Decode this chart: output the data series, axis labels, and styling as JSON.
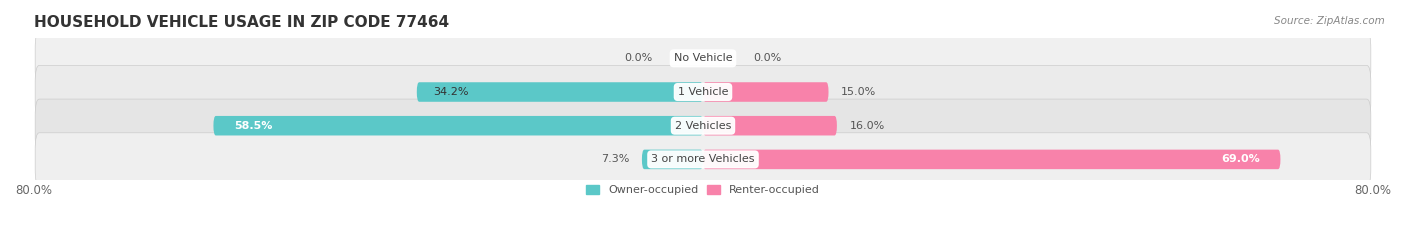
{
  "title": "HOUSEHOLD VEHICLE USAGE IN ZIP CODE 77464",
  "source": "Source: ZipAtlas.com",
  "categories": [
    "No Vehicle",
    "1 Vehicle",
    "2 Vehicles",
    "3 or more Vehicles"
  ],
  "owner_values": [
    0.0,
    34.2,
    58.5,
    7.3
  ],
  "renter_values": [
    0.0,
    15.0,
    16.0,
    69.0
  ],
  "owner_color": "#5bc8c8",
  "renter_color": "#f882aa",
  "owner_label": "Owner-occupied",
  "renter_label": "Renter-occupied",
  "xlim_left": -80.0,
  "xlim_right": 80.0,
  "title_fontsize": 11,
  "axis_fontsize": 8.5,
  "label_fontsize": 8,
  "cat_fontsize": 8,
  "background_color": "#ffffff",
  "bar_height": 0.58,
  "row_bg_color_odd": "#f2f2f2",
  "row_bg_color_even": "#e8e8e8",
  "row_border_color": "#d8d8d8"
}
